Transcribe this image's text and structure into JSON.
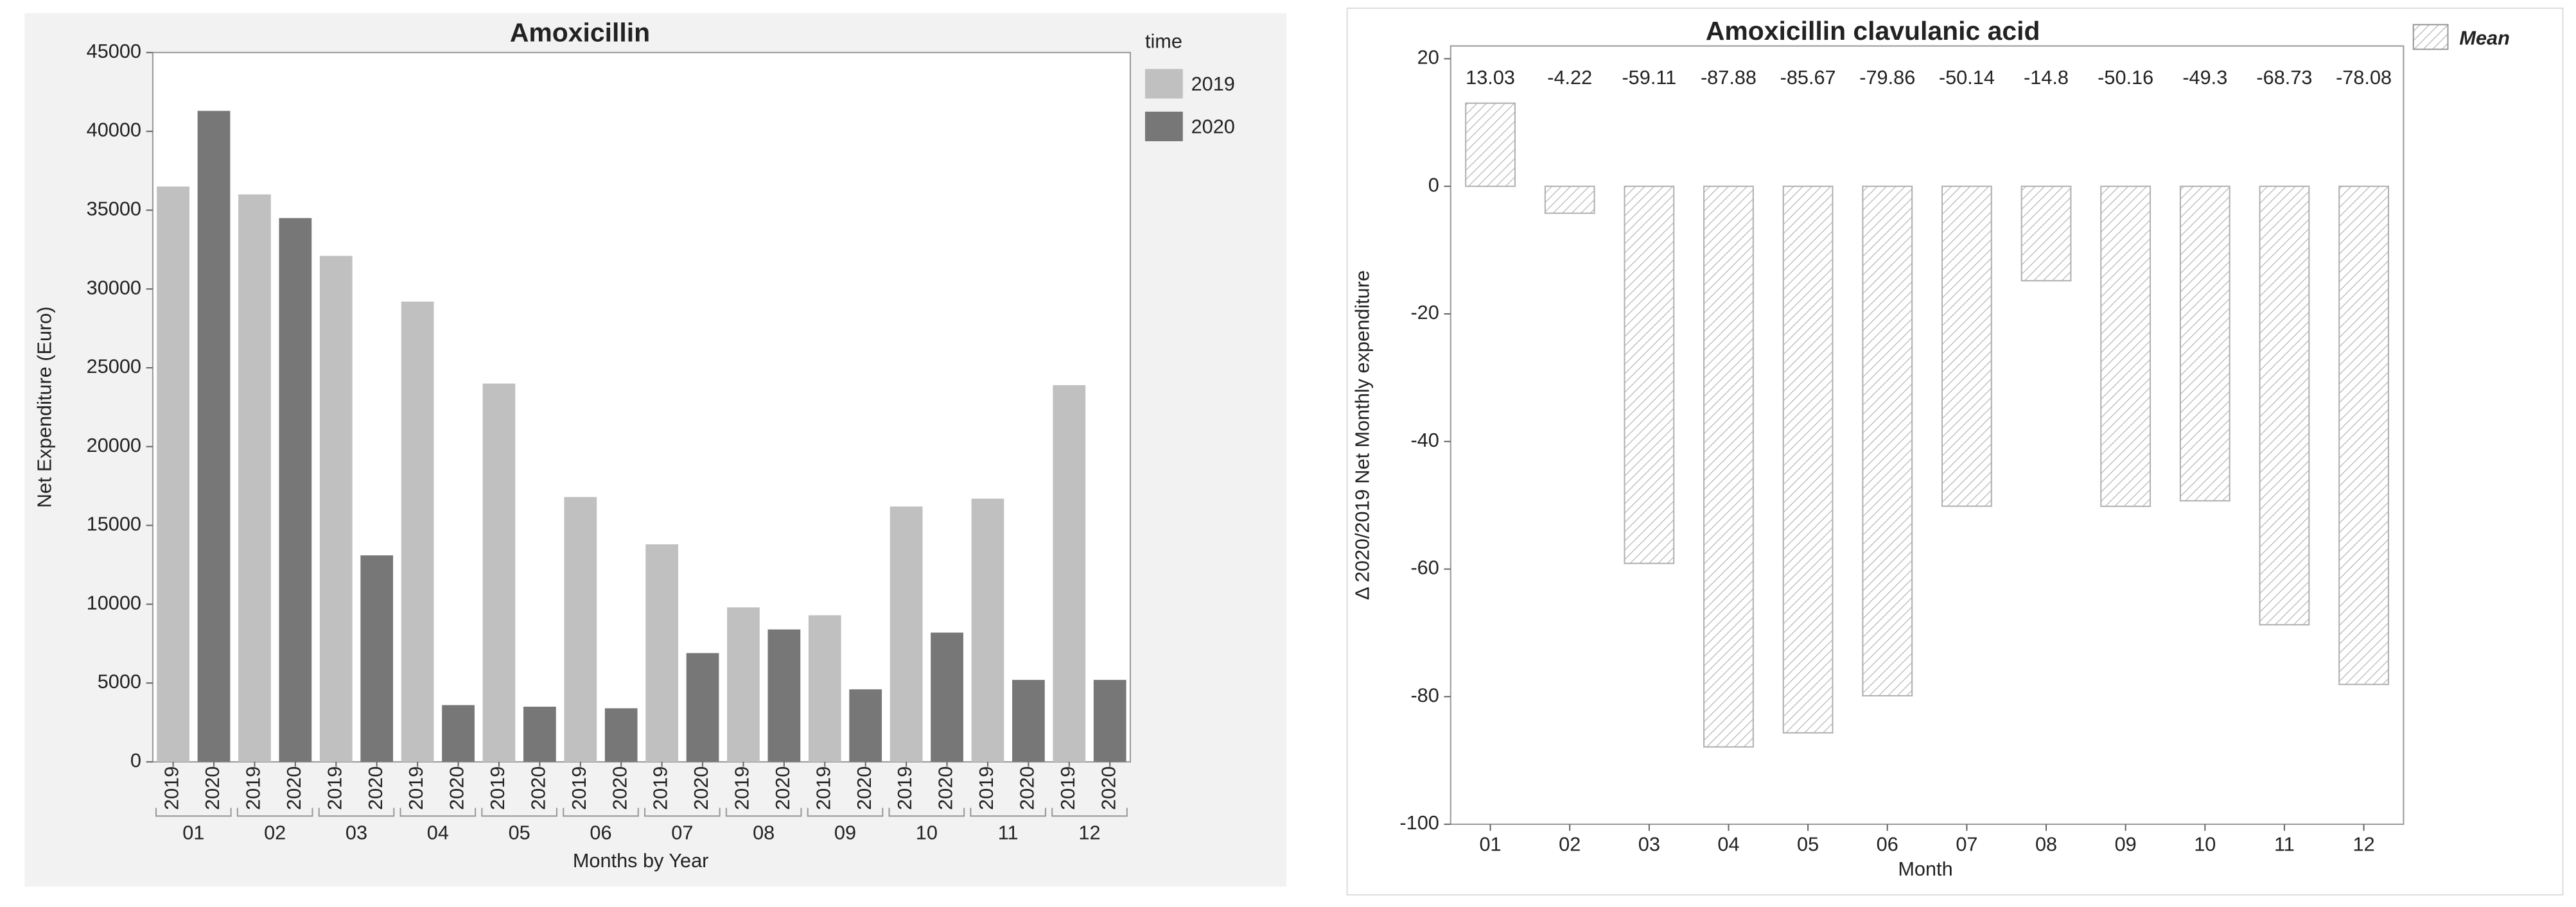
{
  "chart_data": [
    {
      "type": "grouped_bar",
      "title": "Amoxicillin",
      "x_label": "Months by Year",
      "y_label": "Net Expenditure (Euro)",
      "legend_title": "time",
      "legend": "right",
      "categories": [
        "01",
        "02",
        "03",
        "04",
        "05",
        "06",
        "07",
        "08",
        "09",
        "10",
        "11",
        "12"
      ],
      "series": [
        {
          "name": "2019",
          "color": "#c0c0c0",
          "values": [
            36500,
            36000,
            32100,
            29200,
            24000,
            16800,
            13800,
            9800,
            9300,
            16200,
            16700,
            23900
          ]
        },
        {
          "name": "2020",
          "color": "#777777",
          "values": [
            41300,
            34500,
            13100,
            3600,
            3500,
            3400,
            6900,
            8400,
            4600,
            8200,
            5200,
            5200
          ]
        }
      ],
      "ylim": [
        0,
        45000
      ],
      "yticks": [
        0,
        5000,
        10000,
        15000,
        20000,
        25000,
        30000,
        35000,
        40000,
        45000
      ]
    },
    {
      "type": "bar",
      "title": "Amoxicillin clavulanic acid",
      "x_label": "Month",
      "y_label": "Δ 2020/2019 Net Monthly expenditure",
      "legend": "top-right",
      "categories": [
        "01",
        "02",
        "03",
        "04",
        "05",
        "06",
        "07",
        "08",
        "09",
        "10",
        "11",
        "12"
      ],
      "series": [
        {
          "name": "Mean",
          "color": "#b0b0b0",
          "values": [
            13.03,
            -4.22,
            -59.11,
            -87.88,
            -85.67,
            -79.86,
            -50.14,
            -14.8,
            -50.16,
            -49.3,
            -68.73,
            -78.08
          ]
        }
      ],
      "ylim": [
        -100,
        22
      ],
      "yticks": [
        -100,
        -80,
        -60,
        -40,
        -20,
        0,
        20
      ]
    }
  ]
}
